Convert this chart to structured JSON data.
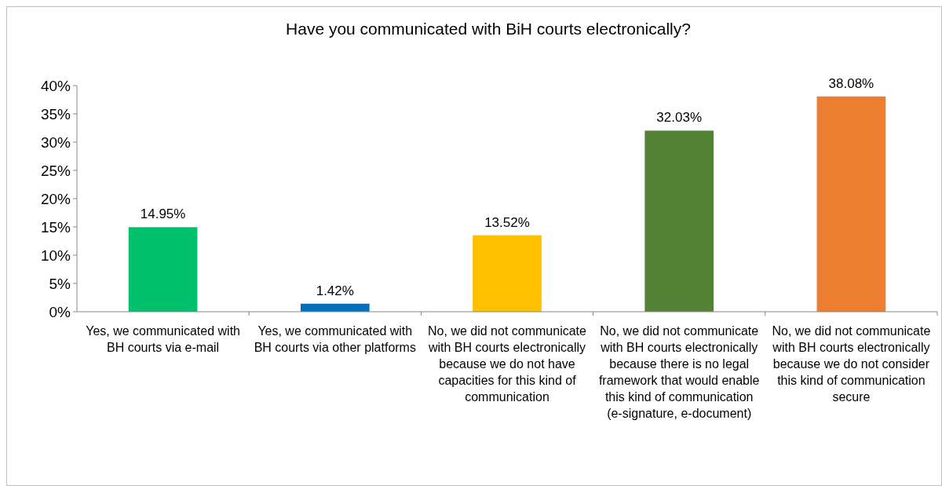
{
  "chart_data": {
    "type": "bar",
    "title": "Have you communicated with BiH courts electronically?",
    "categories": [
      "Yes, we communicated with BH courts via e-mail",
      "Yes, we communicated with BH courts via other platforms",
      "No, we did not communicate with BH courts electronically because we do not have capacities for this kind of communication",
      "No, we did not communicate with BH courts electronically because there is no legal framework that would enable this kind of communication (e-signature, e-document)",
      "No, we did not communicate with BH courts electronically because we do not consider this kind of communication secure"
    ],
    "values": [
      14.95,
      1.42,
      13.52,
      32.03,
      38.08
    ],
    "colors": [
      "#00c06b",
      "#0070c0",
      "#ffc000",
      "#548235",
      "#ed7d31"
    ],
    "value_labels": [
      "14.95%",
      "1.42%",
      "13.52%",
      "32.03%",
      "38.08%"
    ],
    "ylim": [
      0,
      40
    ],
    "yticks": [
      {
        "value": 0,
        "label": "0%"
      },
      {
        "value": 5,
        "label": "5%"
      },
      {
        "value": 10,
        "label": "10%"
      },
      {
        "value": 15,
        "label": "15%"
      },
      {
        "value": 20,
        "label": "20%"
      },
      {
        "value": 25,
        "label": "25%"
      },
      {
        "value": 30,
        "label": "30%"
      },
      {
        "value": 35,
        "label": "35%"
      },
      {
        "value": 40,
        "label": "40%"
      }
    ],
    "grid": false
  }
}
